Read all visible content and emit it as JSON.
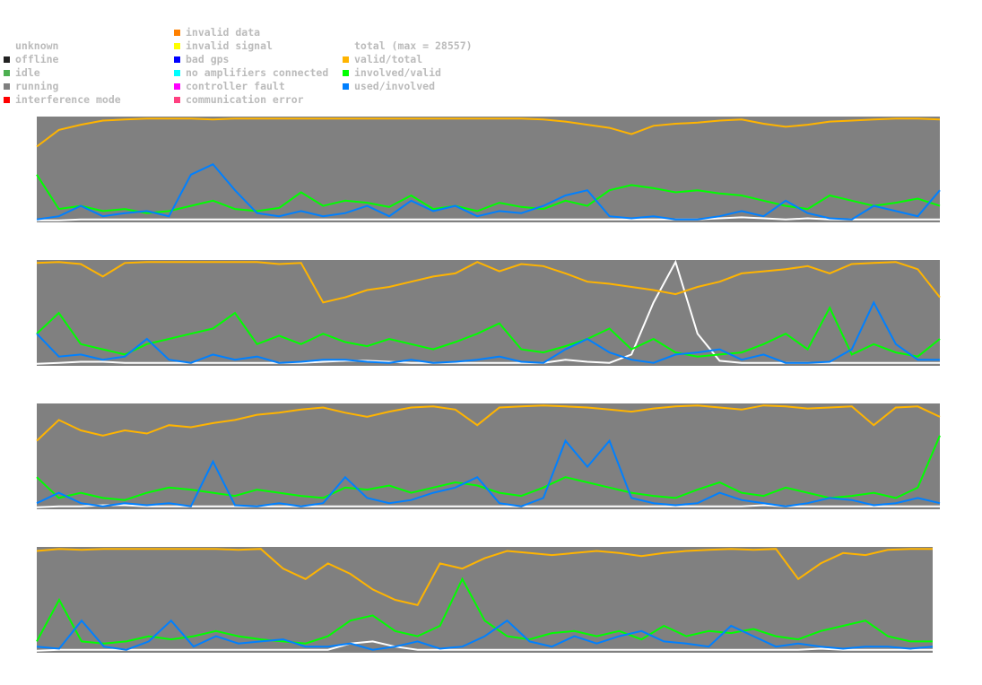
{
  "legend": {
    "status": [
      {
        "label": "unknown",
        "color": "#ffffff"
      },
      {
        "label": "offline",
        "color": "#222222"
      },
      {
        "label": "idle",
        "color": "#4caf50"
      },
      {
        "label": "running",
        "color": "#808080"
      },
      {
        "label": "interference mode",
        "color": "#ff0000"
      }
    ],
    "errors": [
      {
        "label": "invalid data",
        "color": "#ff8000"
      },
      {
        "label": "invalid signal",
        "color": "#ffff00"
      },
      {
        "label": "bad gps",
        "color": "#0000ff"
      },
      {
        "label": "no amplifiers connected",
        "color": "#00ffff"
      },
      {
        "label": "controller fault",
        "color": "#ff00ff"
      },
      {
        "label": "communication error",
        "color": "#ff4080"
      }
    ],
    "ratios": [
      {
        "label": "total (max = 28557)",
        "color": "#ffffff"
      },
      {
        "label": "valid/total",
        "color": "#ffb400"
      },
      {
        "label": "involved/valid",
        "color": "#00ff00"
      },
      {
        "label": "used/involved",
        "color": "#0080ff"
      }
    ]
  },
  "chart_data": {
    "type": "line",
    "background_status": "running",
    "ylim": [
      0,
      1
    ],
    "panels": [
      {
        "series": {
          "valid/total": [
            0.72,
            0.88,
            0.93,
            0.97,
            0.98,
            0.99,
            0.99,
            0.99,
            0.98,
            0.99,
            0.99,
            0.99,
            0.99,
            0.99,
            0.99,
            0.99,
            0.99,
            0.99,
            0.99,
            0.99,
            0.99,
            0.99,
            0.99,
            0.98,
            0.96,
            0.93,
            0.9,
            0.84,
            0.92,
            0.94,
            0.95,
            0.97,
            0.98,
            0.94,
            0.91,
            0.93,
            0.96,
            0.97,
            0.98,
            0.99,
            0.99,
            0.98
          ],
          "involved/valid": [
            0.45,
            0.12,
            0.15,
            0.1,
            0.12,
            0.08,
            0.1,
            0.15,
            0.2,
            0.12,
            0.1,
            0.13,
            0.28,
            0.15,
            0.2,
            0.18,
            0.14,
            0.25,
            0.12,
            0.15,
            0.1,
            0.18,
            0.14,
            0.12,
            0.2,
            0.15,
            0.3,
            0.35,
            0.32,
            0.28,
            0.3,
            0.27,
            0.25,
            0.2,
            0.15,
            0.12,
            0.25,
            0.2,
            0.15,
            0.18,
            0.22,
            0.15
          ],
          "used/involved": [
            0.02,
            0.05,
            0.15,
            0.05,
            0.08,
            0.1,
            0.05,
            0.45,
            0.55,
            0.3,
            0.08,
            0.05,
            0.1,
            0.05,
            0.08,
            0.15,
            0.05,
            0.2,
            0.1,
            0.15,
            0.05,
            0.1,
            0.08,
            0.15,
            0.25,
            0.3,
            0.05,
            0.03,
            0.05,
            0.02,
            0.02,
            0.05,
            0.1,
            0.05,
            0.2,
            0.08,
            0.03,
            0.02,
            0.15,
            0.1,
            0.05,
            0.3
          ],
          "total": [
            0.01,
            0.01,
            0.02,
            0.02,
            0.02,
            0.02,
            0.02,
            0.02,
            0.02,
            0.02,
            0.02,
            0.02,
            0.02,
            0.02,
            0.02,
            0.02,
            0.02,
            0.02,
            0.02,
            0.02,
            0.02,
            0.02,
            0.02,
            0.02,
            0.02,
            0.02,
            0.02,
            0.02,
            0.02,
            0.02,
            0.02,
            0.03,
            0.04,
            0.03,
            0.02,
            0.03,
            0.02,
            0.02,
            0.02,
            0.02,
            0.02,
            0.02
          ]
        }
      },
      {
        "series": {
          "valid/total": [
            0.98,
            0.99,
            0.97,
            0.85,
            0.98,
            0.99,
            0.99,
            0.99,
            0.99,
            0.99,
            0.99,
            0.97,
            0.98,
            0.6,
            0.65,
            0.72,
            0.75,
            0.8,
            0.85,
            0.88,
            0.99,
            0.9,
            0.97,
            0.95,
            0.88,
            0.8,
            0.78,
            0.75,
            0.72,
            0.68,
            0.75,
            0.8,
            0.88,
            0.9,
            0.92,
            0.95,
            0.88,
            0.97,
            0.98,
            0.99,
            0.92,
            0.65
          ],
          "involved/valid": [
            0.3,
            0.5,
            0.2,
            0.15,
            0.1,
            0.2,
            0.25,
            0.3,
            0.35,
            0.5,
            0.2,
            0.28,
            0.2,
            0.3,
            0.22,
            0.18,
            0.25,
            0.2,
            0.15,
            0.22,
            0.3,
            0.4,
            0.15,
            0.12,
            0.18,
            0.25,
            0.35,
            0.15,
            0.25,
            0.12,
            0.08,
            0.1,
            0.12,
            0.2,
            0.3,
            0.15,
            0.55,
            0.1,
            0.2,
            0.12,
            0.08,
            0.25
          ],
          "used/involved": [
            0.3,
            0.08,
            0.1,
            0.05,
            0.08,
            0.25,
            0.05,
            0.02,
            0.1,
            0.05,
            0.08,
            0.02,
            0.03,
            0.05,
            0.05,
            0.03,
            0.02,
            0.05,
            0.02,
            0.03,
            0.05,
            0.08,
            0.03,
            0.02,
            0.15,
            0.25,
            0.12,
            0.05,
            0.02,
            0.1,
            0.12,
            0.15,
            0.05,
            0.1,
            0.02,
            0.02,
            0.03,
            0.15,
            0.6,
            0.2,
            0.05,
            0.05
          ],
          "total": [
            0.01,
            0.02,
            0.03,
            0.03,
            0.02,
            0.02,
            0.02,
            0.02,
            0.02,
            0.02,
            0.02,
            0.02,
            0.02,
            0.03,
            0.04,
            0.04,
            0.03,
            0.02,
            0.02,
            0.02,
            0.02,
            0.02,
            0.02,
            0.02,
            0.05,
            0.03,
            0.02,
            0.1,
            0.6,
            0.99,
            0.3,
            0.04,
            0.02,
            0.02,
            0.02,
            0.02,
            0.02,
            0.02,
            0.02,
            0.02,
            0.02,
            0.02
          ]
        }
      },
      {
        "series": {
          "valid/total": [
            0.65,
            0.85,
            0.75,
            0.7,
            0.75,
            0.72,
            0.8,
            0.78,
            0.82,
            0.85,
            0.9,
            0.92,
            0.95,
            0.97,
            0.92,
            0.88,
            0.93,
            0.97,
            0.98,
            0.95,
            0.8,
            0.97,
            0.98,
            0.99,
            0.98,
            0.97,
            0.95,
            0.93,
            0.96,
            0.98,
            0.99,
            0.97,
            0.95,
            0.99,
            0.98,
            0.96,
            0.97,
            0.98,
            0.8,
            0.97,
            0.98,
            0.88
          ],
          "involved/valid": [
            0.3,
            0.1,
            0.15,
            0.1,
            0.08,
            0.15,
            0.2,
            0.18,
            0.15,
            0.12,
            0.18,
            0.15,
            0.12,
            0.1,
            0.2,
            0.18,
            0.22,
            0.15,
            0.2,
            0.25,
            0.22,
            0.15,
            0.12,
            0.2,
            0.3,
            0.25,
            0.2,
            0.15,
            0.12,
            0.1,
            0.18,
            0.25,
            0.15,
            0.12,
            0.2,
            0.15,
            0.1,
            0.12,
            0.15,
            0.1,
            0.2,
            0.7
          ],
          "used/involved": [
            0.05,
            0.15,
            0.05,
            0.02,
            0.05,
            0.03,
            0.05,
            0.02,
            0.45,
            0.03,
            0.02,
            0.05,
            0.02,
            0.05,
            0.3,
            0.1,
            0.05,
            0.08,
            0.15,
            0.2,
            0.3,
            0.05,
            0.02,
            0.1,
            0.65,
            0.4,
            0.65,
            0.1,
            0.05,
            0.03,
            0.05,
            0.15,
            0.08,
            0.05,
            0.02,
            0.05,
            0.1,
            0.08,
            0.03,
            0.05,
            0.1,
            0.05
          ],
          "total": [
            0.01,
            0.02,
            0.02,
            0.03,
            0.03,
            0.02,
            0.02,
            0.02,
            0.02,
            0.02,
            0.02,
            0.02,
            0.02,
            0.02,
            0.02,
            0.02,
            0.02,
            0.02,
            0.02,
            0.02,
            0.02,
            0.02,
            0.02,
            0.02,
            0.02,
            0.02,
            0.02,
            0.02,
            0.02,
            0.02,
            0.02,
            0.02,
            0.02,
            0.03,
            0.02,
            0.02,
            0.02,
            0.02,
            0.02,
            0.02,
            0.02,
            0.02
          ]
        }
      },
      {
        "series": {
          "valid/total": [
            0.97,
            0.99,
            0.98,
            0.99,
            0.99,
            0.99,
            0.99,
            0.99,
            0.99,
            0.98,
            0.99,
            0.8,
            0.7,
            0.85,
            0.75,
            0.6,
            0.5,
            0.45,
            0.85,
            0.8,
            0.9,
            0.97,
            0.95,
            0.93,
            0.95,
            0.97,
            0.95,
            0.92,
            0.95,
            0.97,
            0.98,
            0.99,
            0.98,
            0.99,
            0.7,
            0.85,
            0.95,
            0.93,
            0.98,
            0.99,
            0.99
          ],
          "involved/valid": [
            0.1,
            0.5,
            0.1,
            0.08,
            0.1,
            0.15,
            0.12,
            0.15,
            0.2,
            0.15,
            0.12,
            0.1,
            0.08,
            0.15,
            0.3,
            0.35,
            0.2,
            0.15,
            0.25,
            0.7,
            0.3,
            0.15,
            0.12,
            0.18,
            0.2,
            0.15,
            0.2,
            0.12,
            0.25,
            0.15,
            0.2,
            0.18,
            0.22,
            0.15,
            0.12,
            0.2,
            0.25,
            0.3,
            0.15,
            0.1,
            0.1
          ],
          "used/involved": [
            0.05,
            0.03,
            0.3,
            0.05,
            0.02,
            0.1,
            0.3,
            0.05,
            0.15,
            0.08,
            0.1,
            0.12,
            0.05,
            0.05,
            0.08,
            0.02,
            0.05,
            0.1,
            0.03,
            0.05,
            0.15,
            0.3,
            0.1,
            0.05,
            0.15,
            0.08,
            0.15,
            0.2,
            0.1,
            0.08,
            0.05,
            0.25,
            0.15,
            0.05,
            0.08,
            0.05,
            0.03,
            0.05,
            0.05,
            0.03,
            0.05
          ],
          "total": [
            0.01,
            0.02,
            0.02,
            0.02,
            0.02,
            0.02,
            0.02,
            0.02,
            0.02,
            0.02,
            0.02,
            0.02,
            0.02,
            0.02,
            0.08,
            0.1,
            0.05,
            0.02,
            0.02,
            0.02,
            0.02,
            0.02,
            0.02,
            0.02,
            0.02,
            0.02,
            0.02,
            0.02,
            0.02,
            0.02,
            0.02,
            0.02,
            0.02,
            0.02,
            0.02,
            0.03,
            0.02,
            0.02,
            0.02,
            0.02,
            0.02
          ]
        }
      }
    ]
  }
}
